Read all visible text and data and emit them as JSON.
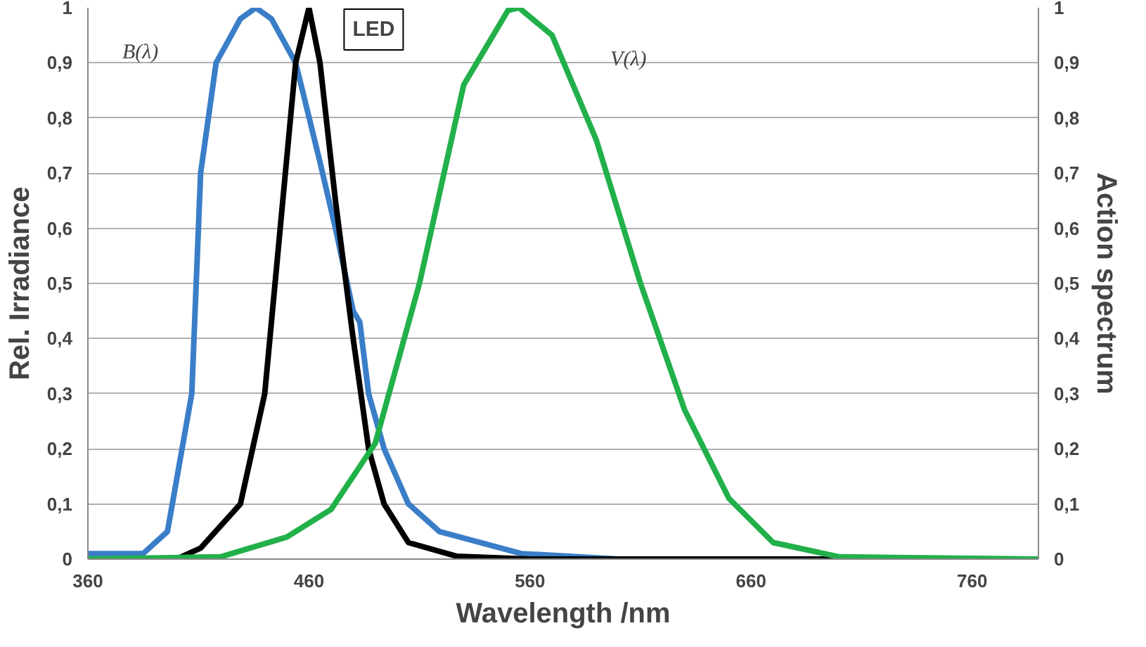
{
  "chart_data": {
    "type": "line",
    "xlabel": "Wavelength /nm",
    "ylabel": "Rel. Irradiance",
    "y2label": "Action spectrum",
    "xlim": [
      360,
      790
    ],
    "xticks": [
      360,
      460,
      560,
      660,
      760
    ],
    "ylim": [
      0,
      1
    ],
    "yticks": [
      0,
      {
        "value": 0.1,
        "label": "0,1"
      },
      {
        "value": 0.2,
        "label": "0,2"
      },
      {
        "value": 0.3,
        "label": "0,3"
      },
      {
        "value": 0.4,
        "label": "0,4"
      },
      {
        "value": 0.5,
        "label": "0,5"
      },
      {
        "value": 0.6,
        "label": "0,6"
      },
      {
        "value": 0.7,
        "label": "0,7"
      },
      {
        "value": 0.8,
        "label": "0,8"
      },
      {
        "value": 0.9,
        "label": "0,9"
      },
      1
    ],
    "y2lim": [
      0,
      1
    ],
    "y2ticks": [
      0,
      {
        "value": 0.1,
        "label": "0,1"
      },
      {
        "value": 0.2,
        "label": "0,2"
      },
      {
        "value": 0.3,
        "label": "0,3"
      },
      {
        "value": 0.4,
        "label": "0,4"
      },
      {
        "value": 0.5,
        "label": "0,5"
      },
      {
        "value": 0.6,
        "label": "0,6"
      },
      {
        "value": 0.7,
        "label": "0,7"
      },
      {
        "value": 0.8,
        "label": "0,8"
      },
      {
        "value": 0.9,
        "label": "0,9"
      },
      1
    ],
    "grid": "y",
    "series": [
      {
        "name": "B(λ)",
        "color": "#3a7ec8",
        "x": [
          360,
          385,
          396,
          407,
          411,
          418,
          429,
          436,
          443,
          454,
          465,
          472,
          480,
          483,
          487,
          494,
          505,
          519,
          556,
          600,
          790
        ],
        "values": [
          0.01,
          0.01,
          0.05,
          0.3,
          0.7,
          0.9,
          0.98,
          1.0,
          0.98,
          0.9,
          0.72,
          0.6,
          0.45,
          0.43,
          0.3,
          0.2,
          0.1,
          0.05,
          0.01,
          0,
          0
        ]
      },
      {
        "name": "LED",
        "color": "#000000",
        "x": [
          360,
          400,
          411,
          429,
          440,
          447,
          454,
          460,
          465,
          472,
          480,
          487,
          494,
          505,
          527,
          560,
          790
        ],
        "values": [
          0,
          0,
          0.02,
          0.1,
          0.3,
          0.6,
          0.9,
          1.0,
          0.9,
          0.65,
          0.4,
          0.2,
          0.1,
          0.03,
          0.005,
          0,
          0
        ]
      },
      {
        "name": "V(λ)",
        "color": "#22b04a",
        "x": [
          360,
          420,
          450,
          470,
          490,
          510,
          530,
          550,
          555,
          570,
          590,
          610,
          630,
          650,
          670,
          700,
          790
        ],
        "values": [
          0,
          0.004,
          0.04,
          0.09,
          0.21,
          0.5,
          0.86,
          0.995,
          1.0,
          0.95,
          0.76,
          0.5,
          0.27,
          0.11,
          0.03,
          0.004,
          0
        ]
      }
    ]
  }
}
